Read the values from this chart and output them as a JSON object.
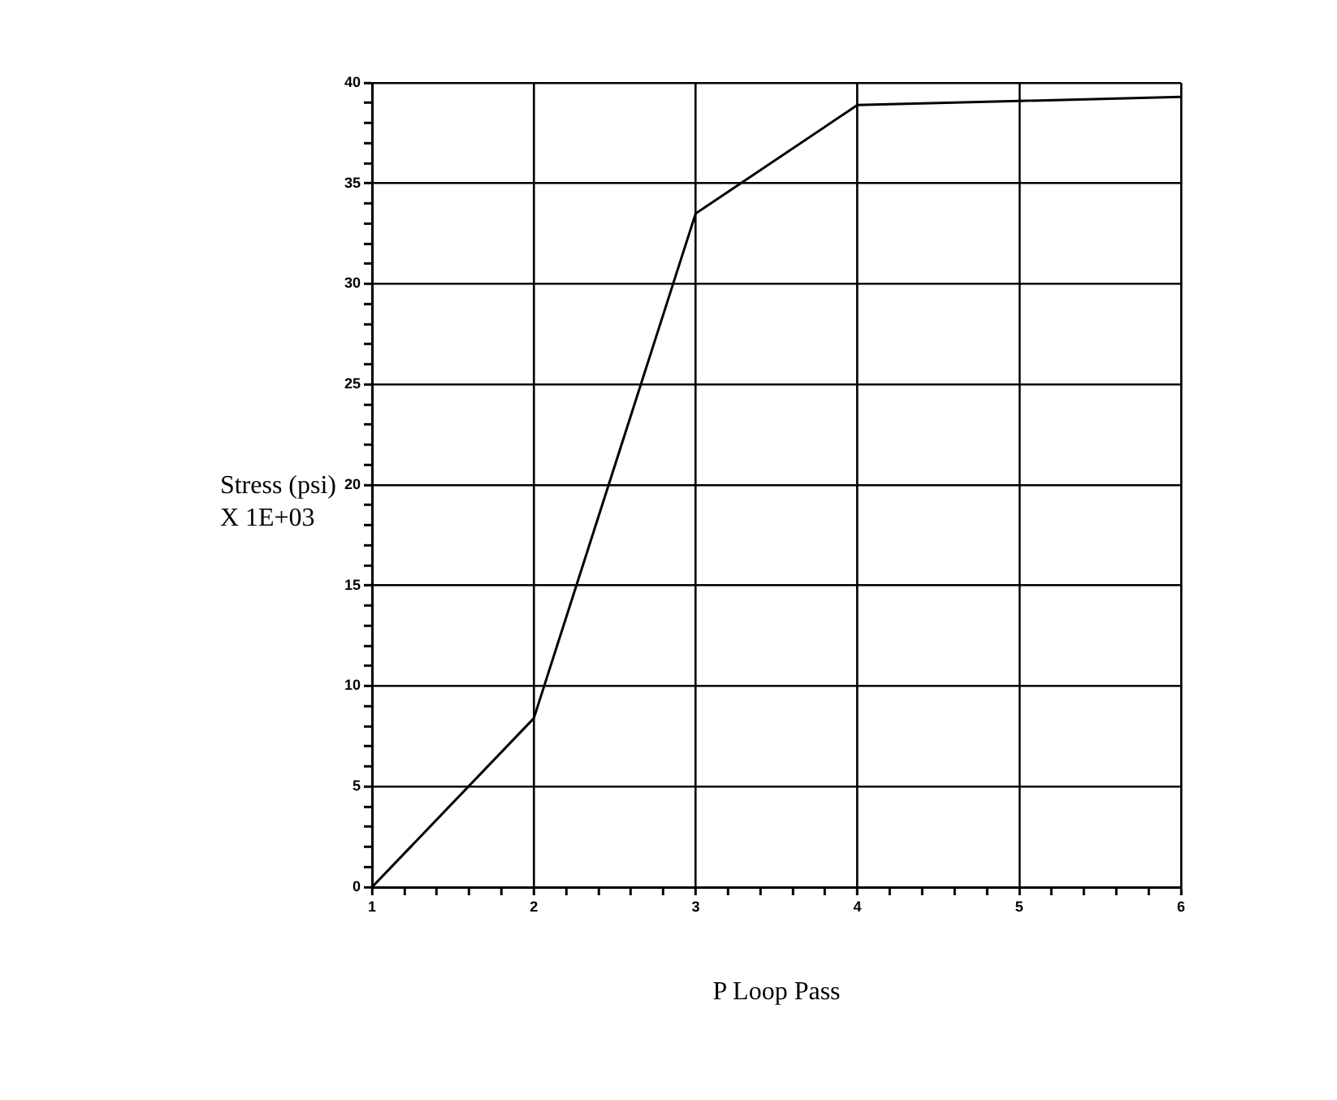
{
  "chart_data": {
    "type": "line",
    "xlabel": "P Loop Pass",
    "ylabel": "Stress (psi)\nX 1E+03",
    "x": [
      1,
      2,
      3,
      4,
      5,
      6
    ],
    "series": [
      {
        "color": "#000000",
        "values": [
          0,
          8.4,
          33.5,
          38.9,
          39.1,
          39.3
        ]
      }
    ],
    "xlim": [
      1,
      6
    ],
    "xticks": [
      1,
      {
        "value": 1.2,
        "label": null
      },
      {
        "value": 1.4,
        "label": null
      },
      {
        "value": 1.6,
        "label": null
      },
      {
        "value": 1.8,
        "label": null
      },
      2,
      {
        "value": 2.2,
        "label": null
      },
      {
        "value": 2.4,
        "label": null
      },
      {
        "value": 2.6,
        "label": null
      },
      {
        "value": 2.8,
        "label": null
      },
      3,
      {
        "value": 3.2,
        "label": null
      },
      {
        "value": 3.4,
        "label": null
      },
      {
        "value": 3.6,
        "label": null
      },
      {
        "value": 3.8,
        "label": null
      },
      4,
      {
        "value": 4.2,
        "label": null
      },
      {
        "value": 4.4,
        "label": null
      },
      {
        "value": 4.6,
        "label": null
      },
      {
        "value": 4.8,
        "label": null
      },
      5,
      {
        "value": 5.2,
        "label": null
      },
      {
        "value": 5.4,
        "label": null
      },
      {
        "value": 5.6,
        "label": null
      },
      {
        "value": 5.8,
        "label": null
      },
      6
    ],
    "ylim": [
      0,
      40
    ],
    "yticks": [
      0,
      {
        "value": 1,
        "label": null
      },
      {
        "value": 2,
        "label": null
      },
      {
        "value": 3,
        "label": null
      },
      {
        "value": 4,
        "label": null
      },
      5,
      {
        "value": 6,
        "label": null
      },
      {
        "value": 7,
        "label": null
      },
      {
        "value": 8,
        "label": null
      },
      {
        "value": 9,
        "label": null
      },
      10,
      {
        "value": 11,
        "label": null
      },
      {
        "value": 12,
        "label": null
      },
      {
        "value": 13,
        "label": null
      },
      {
        "value": 14,
        "label": null
      },
      15,
      {
        "value": 16,
        "label": null
      },
      {
        "value": 17,
        "label": null
      },
      {
        "value": 18,
        "label": null
      },
      {
        "value": 19,
        "label": null
      },
      20,
      {
        "value": 21,
        "label": null
      },
      {
        "value": 22,
        "label": null
      },
      {
        "value": 23,
        "label": null
      },
      {
        "value": 24,
        "label": null
      },
      25,
      {
        "value": 26,
        "label": null
      },
      {
        "value": 27,
        "label": null
      },
      {
        "value": 28,
        "label": null
      },
      {
        "value": 29,
        "label": null
      },
      30,
      {
        "value": 31,
        "label": null
      },
      {
        "value": 32,
        "label": null
      },
      {
        "value": 33,
        "label": null
      },
      {
        "value": 34,
        "label": null
      },
      35,
      {
        "value": 36,
        "label": null
      },
      {
        "value": 37,
        "label": null
      },
      {
        "value": 38,
        "label": null
      },
      {
        "value": 39,
        "label": null
      },
      40
    ],
    "grid": true,
    "legend": false,
    "marker": "none",
    "line_style": "solid"
  }
}
